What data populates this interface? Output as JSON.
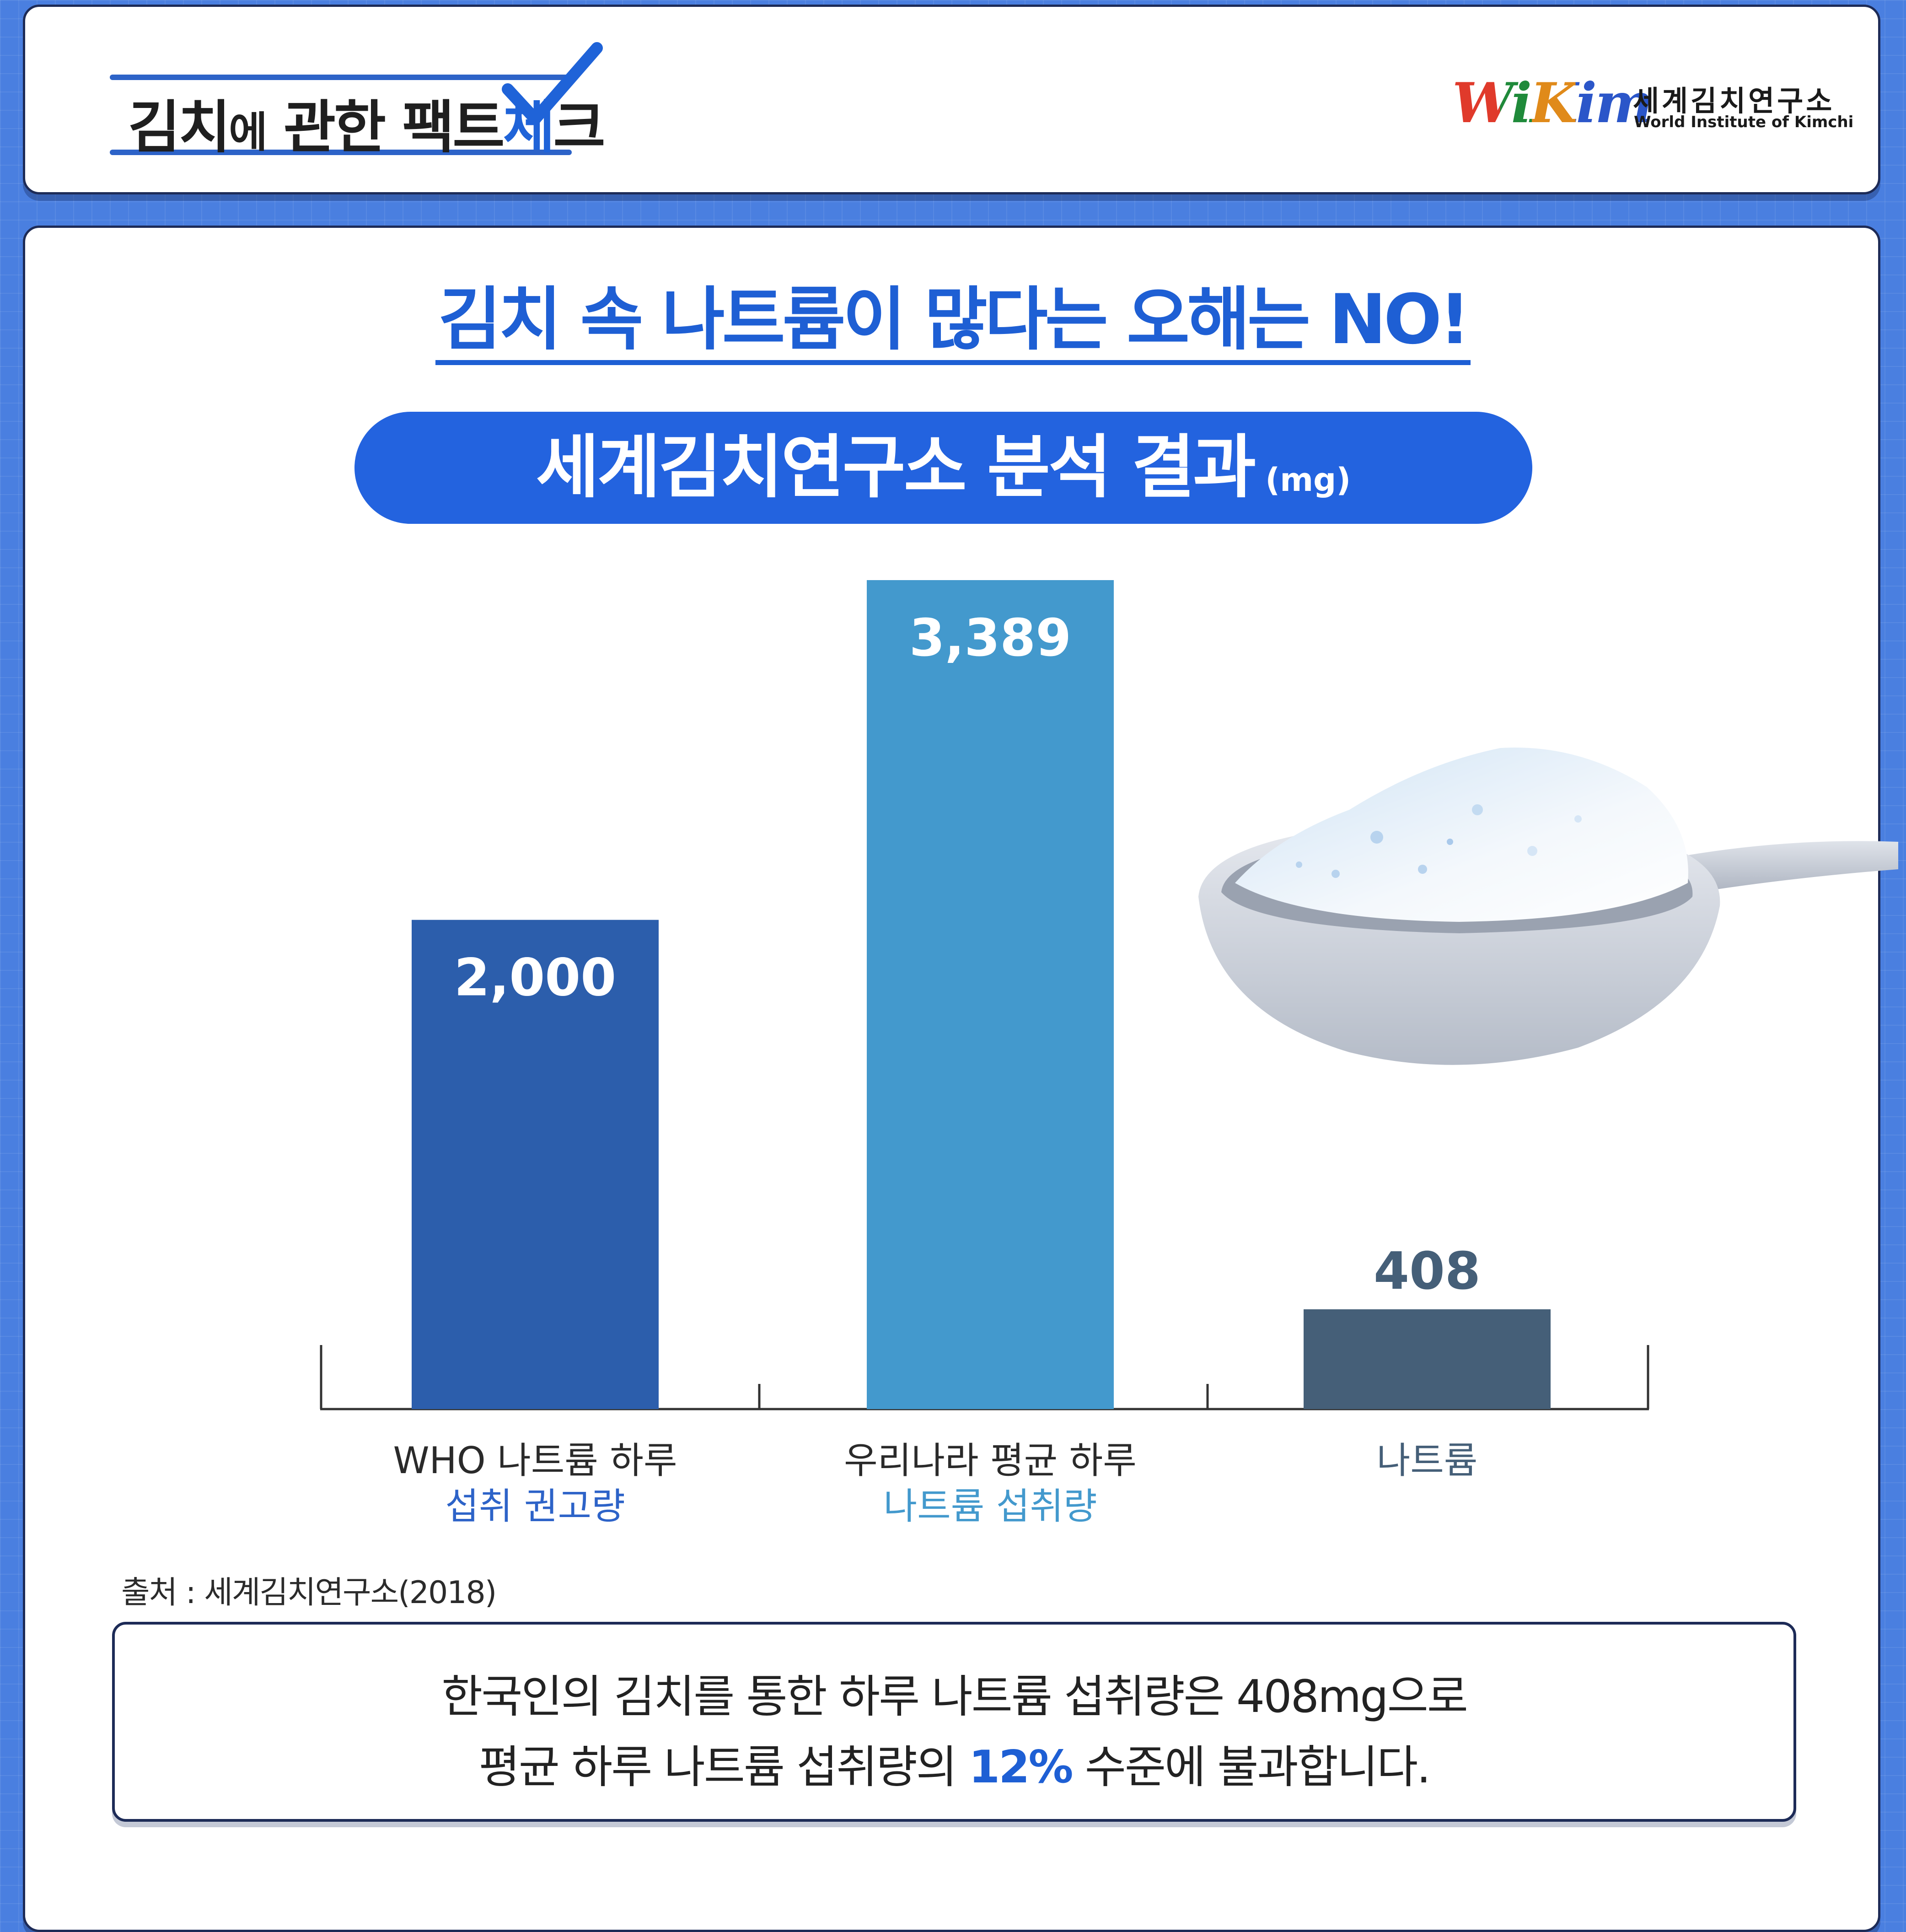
{
  "header": {
    "title_part1": "김치",
    "title_small": "에",
    "title_part2": " 관한 팩트",
    "title_blue": "체",
    "title_part3": "크",
    "logo_mark": "WiKim",
    "logo_ko": "세계김치연구소",
    "logo_en": "World Institute of Kimchi"
  },
  "headline": "김치 속 나트륨이 많다는 오해는 NO!",
  "subtitle": {
    "main": "세계김치연구소 분석 결과",
    "unit": "(mg)"
  },
  "chart_data": {
    "type": "bar",
    "categories": [
      [
        "WHO 나트륨 하루",
        "섭취 권고량"
      ],
      [
        "우리나라 평균 하루",
        "나트륨 섭취량"
      ],
      [
        "나트륨",
        ""
      ]
    ],
    "values": [
      2000,
      3389,
      408
    ],
    "value_labels": [
      "2,000",
      "3,389",
      "408"
    ],
    "colors": [
      "#2c5eac",
      "#4399cd",
      "#455f78"
    ],
    "label_colors": [
      "#2d63c8",
      "#4399cd",
      "#455f78"
    ],
    "ylim": [
      0,
      3389
    ]
  },
  "source": "출처 : 세계김치연구소(2018)",
  "note": {
    "line1": "한국인의 김치를 통한 하루 나트륨 섭취량은 408mg으로",
    "line2_pre": "평균 하루 나트륨 섭취량의 ",
    "line2_highlight": "12%",
    "line2_post": " 수준에 불과합니다."
  }
}
